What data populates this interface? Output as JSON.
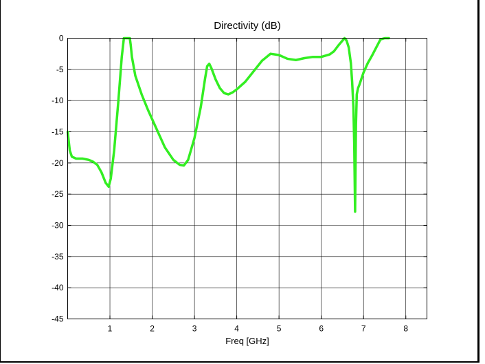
{
  "chart_data": {
    "type": "line",
    "title": "Directivity (dB)",
    "xlabel": "Freq [GHz]",
    "ylabel": "",
    "xlim": [
      0,
      8.5
    ],
    "ylim": [
      -45,
      0
    ],
    "xticks": [
      1,
      2,
      3,
      4,
      5,
      6,
      7,
      8
    ],
    "yticks": [
      0,
      -5,
      -10,
      -15,
      -20,
      -25,
      -30,
      -35,
      -40,
      -45
    ],
    "xtick_labels": [
      "1",
      "2",
      "3",
      "4",
      "5",
      "6",
      "7",
      "8"
    ],
    "ytick_labels": [
      "0",
      "-5",
      "-10",
      "-15",
      "-20",
      "-25",
      "-30",
      "-35",
      "-40",
      "-45"
    ],
    "grid": true,
    "line_color": "#33ee22",
    "series": [
      {
        "x": [
          0,
          0.05,
          0.1,
          0.2,
          0.35,
          0.5,
          0.6,
          0.7,
          0.8,
          0.9,
          0.97,
          1.02,
          1.1,
          1.2,
          1.28,
          1.33,
          1.35,
          1.36,
          1.47,
          1.49,
          1.52,
          1.6,
          1.75,
          1.9,
          2.1,
          2.3,
          2.5,
          2.65,
          2.75,
          2.85,
          3.0,
          3.15,
          3.25,
          3.3,
          3.35,
          3.4,
          3.5,
          3.6,
          3.7,
          3.8,
          3.9,
          4.0,
          4.2,
          4.4,
          4.6,
          4.8,
          5.0,
          5.2,
          5.4,
          5.6,
          5.8,
          6.0,
          6.2,
          6.3,
          6.4,
          6.5,
          6.55,
          6.6,
          6.65,
          6.7,
          6.73,
          6.76,
          6.78,
          6.8,
          6.82,
          6.84,
          6.87,
          6.9,
          7.0,
          7.1,
          7.2,
          7.3,
          7.4,
          7.5,
          7.6
        ],
        "y": [
          -15,
          -18,
          -19,
          -19.3,
          -19.3,
          -19.5,
          -19.8,
          -20.3,
          -21.5,
          -23.2,
          -23.8,
          -22.5,
          -18,
          -10,
          -3,
          0,
          0,
          0,
          0,
          -1,
          -3,
          -6,
          -9,
          -11.5,
          -14.5,
          -17.5,
          -19.5,
          -20.3,
          -20.4,
          -19.5,
          -16,
          -11,
          -6.5,
          -4.5,
          -4.1,
          -4.8,
          -6.6,
          -8,
          -8.8,
          -9,
          -8.7,
          -8.2,
          -7,
          -5.3,
          -3.6,
          -2.5,
          -2.7,
          -3.3,
          -3.5,
          -3.2,
          -3,
          -3,
          -2.6,
          -2.1,
          -1.2,
          -0.4,
          0,
          -0.4,
          -1.5,
          -4,
          -7,
          -11,
          -17,
          -27.8,
          -14,
          -9,
          -8,
          -7.5,
          -5.5,
          -4,
          -2.8,
          -1.5,
          -0.2,
          0,
          0
        ]
      }
    ]
  }
}
